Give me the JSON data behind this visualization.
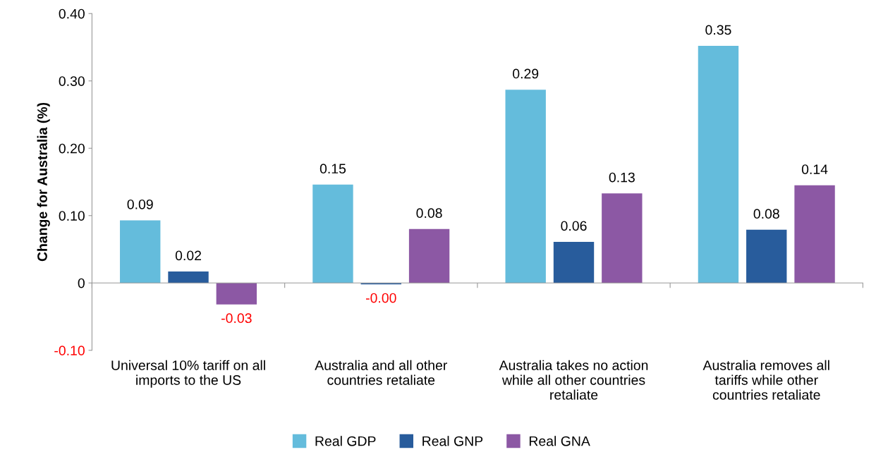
{
  "chart_data": {
    "type": "bar",
    "ylabel": "Change for Australia (%)",
    "categories": [
      "Universal 10% tariff on all\nimports to the US",
      "Australia and all other\ncountries retaliate",
      "Australia takes no action\nwhile all other countries\nretaliate",
      "Australia removes all\ntariffs while other\ncountries retaliate"
    ],
    "series": [
      {
        "name": "Real GDP",
        "color": "#64bcdc",
        "values": [
          0.093,
          0.146,
          0.287,
          0.352
        ],
        "value_labels": [
          "0.09",
          "0.15",
          "0.29",
          "0.35"
        ]
      },
      {
        "name": "Real GNP",
        "color": "#285c9c",
        "values": [
          0.017,
          -0.002,
          0.061,
          0.079
        ],
        "value_labels": [
          "0.02",
          "-0.00",
          "0.06",
          "0.08"
        ]
      },
      {
        "name": "Real GNA",
        "color": "#8c58a4",
        "values": [
          -0.032,
          0.08,
          0.133,
          0.145
        ],
        "value_labels": [
          "-0.03",
          "0.08",
          "0.13",
          "0.14"
        ]
      }
    ],
    "ylim": [
      -0.1,
      0.4
    ],
    "yticks": [
      {
        "value": -0.1,
        "label": "-0.10"
      },
      {
        "value": 0,
        "label": "0"
      },
      {
        "value": 0.1,
        "label": "0.10"
      },
      {
        "value": 0.2,
        "label": "0.20"
      },
      {
        "value": 0.3,
        "label": "0.30"
      },
      {
        "value": 0.4,
        "label": "0.40"
      }
    ],
    "legend": "bottom",
    "marker": "square"
  }
}
